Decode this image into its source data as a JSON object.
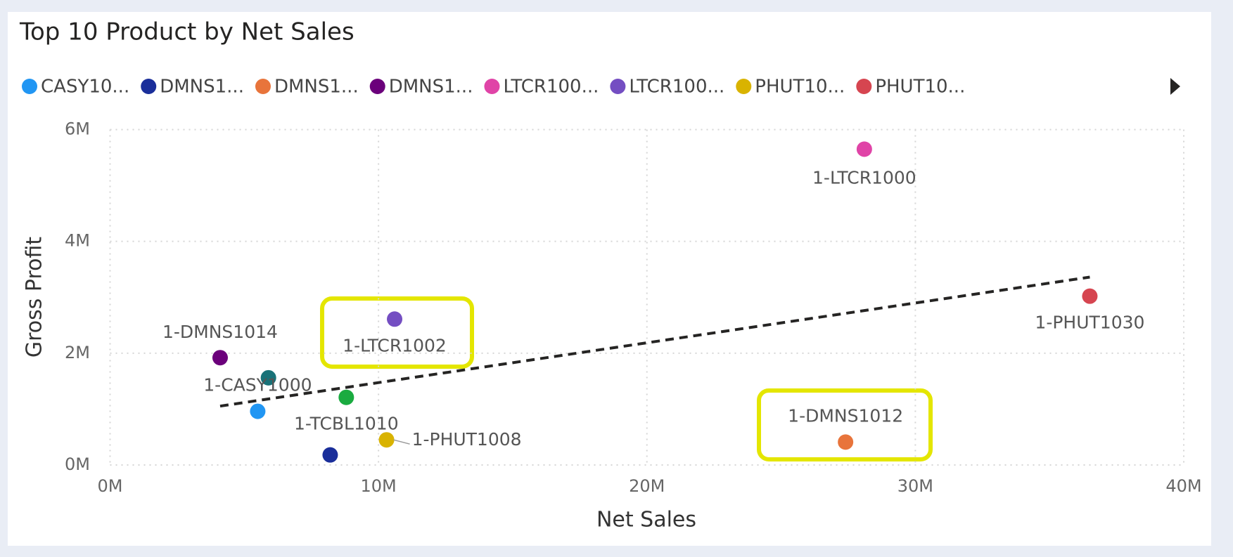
{
  "chart_data": {
    "type": "scatter",
    "title": "Top 10 Product by Net Sales",
    "xlabel": "Net Sales",
    "ylabel": "Gross Profit",
    "xlim": [
      0,
      40000000
    ],
    "ylim": [
      0,
      6000000
    ],
    "xticks": [
      {
        "value": 0,
        "label": "0M"
      },
      {
        "value": 10000000,
        "label": "10M"
      },
      {
        "value": 20000000,
        "label": "20M"
      },
      {
        "value": 30000000,
        "label": "30M"
      },
      {
        "value": 40000000,
        "label": "40M"
      }
    ],
    "yticks": [
      {
        "value": 0,
        "label": "0M"
      },
      {
        "value": 2000000,
        "label": "2M"
      },
      {
        "value": 4000000,
        "label": "4M"
      },
      {
        "value": 6000000,
        "label": "6M"
      }
    ],
    "grid": true,
    "trendline": true,
    "series": [
      {
        "name": "1-CASY1000",
        "legend_label": "CASY10...",
        "color": "#2196f3",
        "x": [
          5500000
        ],
        "values": [
          960000
        ]
      },
      {
        "legend_label": "DMNS1...",
        "color": "#1a2e9a",
        "x": [
          8200000
        ],
        "values": [
          180000
        ]
      },
      {
        "name": "1-DMNS1012",
        "legend_label": "DMNS1...",
        "color": "#e8743b",
        "x": [
          27400000
        ],
        "values": [
          410000
        ]
      },
      {
        "name": "1-DMNS1014",
        "legend_label": "DMNS1...",
        "color": "#6b007b",
        "x": [
          4100000
        ],
        "values": [
          1920000
        ]
      },
      {
        "name": "1-LTCR1000",
        "legend_label": "LTCR100...",
        "color": "#e044a7",
        "x": [
          28100000
        ],
        "values": [
          5650000
        ]
      },
      {
        "name": "1-LTCR1002",
        "legend_label": "LTCR100...",
        "color": "#744ec2",
        "x": [
          10600000
        ],
        "values": [
          2610000
        ]
      },
      {
        "name": "1-PHUT1008",
        "legend_label": "PHUT10...",
        "color": "#d9b300",
        "x": [
          10300000
        ],
        "values": [
          450000
        ]
      },
      {
        "name": "1-PHUT1030",
        "legend_label": "PHUT10...",
        "color": "#d64550",
        "x": [
          36500000
        ],
        "values": [
          3020000
        ]
      },
      {
        "color": "#197278",
        "x": [
          5900000
        ],
        "values": [
          1560000
        ]
      },
      {
        "name": "1-TCBL1010",
        "color": "#1aab40",
        "x": [
          8800000
        ],
        "values": [
          1210000
        ]
      }
    ]
  }
}
